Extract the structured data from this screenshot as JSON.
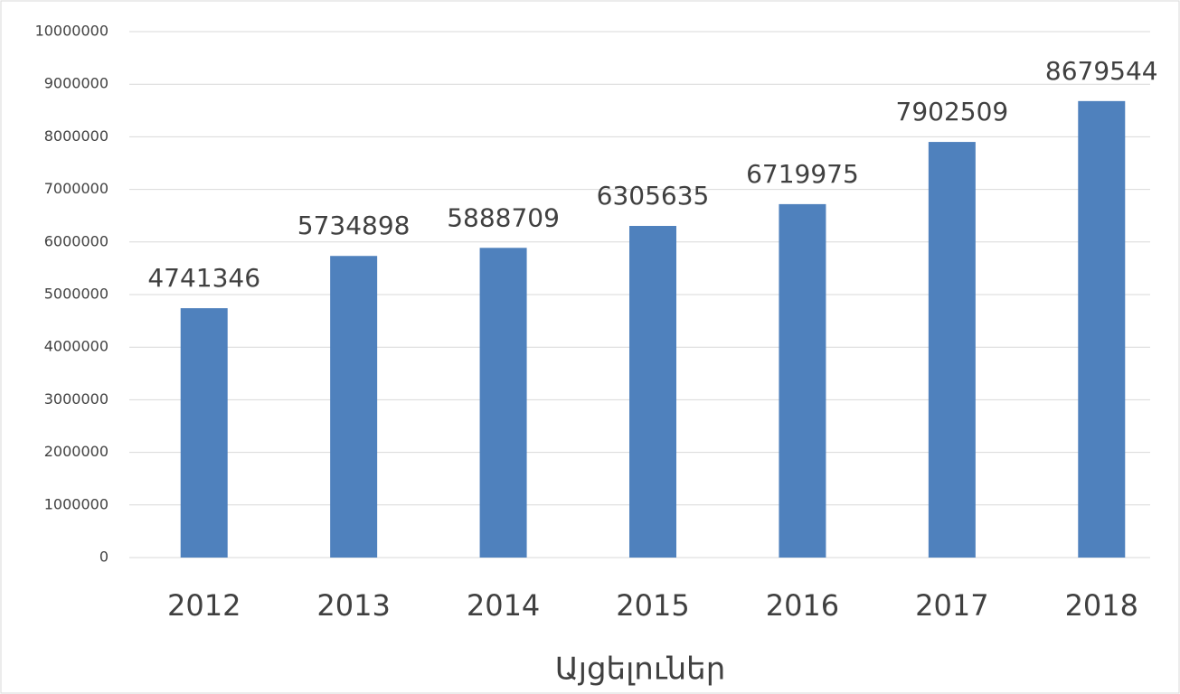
{
  "chart_data": {
    "type": "bar",
    "x_label": "Այցելուներ",
    "categories": [
      "2012",
      "2013",
      "2014",
      "2015",
      "2016",
      "2017",
      "2018"
    ],
    "values": [
      4741346,
      5734898,
      5888709,
      6305635,
      6719975,
      7902509,
      8679544
    ],
    "color": "#4f81bd",
    "ylim": [
      0,
      10000000
    ],
    "yticks": [
      0,
      1000000,
      2000000,
      3000000,
      4000000,
      5000000,
      6000000,
      7000000,
      8000000,
      9000000,
      10000000
    ],
    "grid": true
  }
}
